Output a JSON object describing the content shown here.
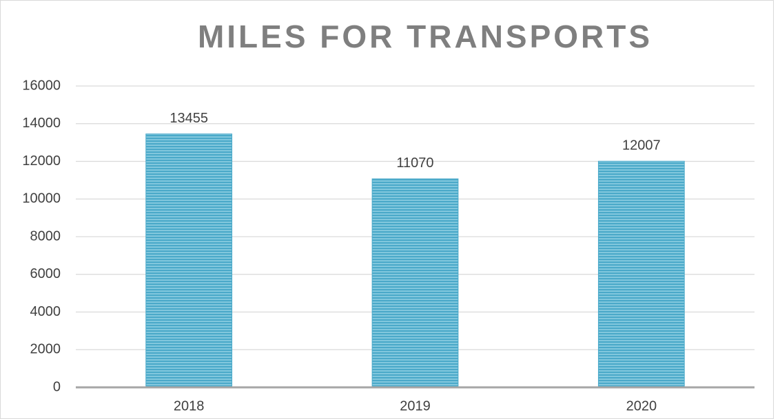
{
  "chart_data": {
    "type": "bar",
    "title": "MILES FOR TRANSPORTS",
    "categories": [
      "2018",
      "2019",
      "2020"
    ],
    "values": [
      13455,
      11070,
      12007
    ],
    "color": "#4aa9c9",
    "ylim": [
      0,
      16000
    ],
    "yticks": [
      0,
      2000,
      4000,
      6000,
      8000,
      10000,
      12000,
      14000,
      16000
    ],
    "grid": true
  }
}
